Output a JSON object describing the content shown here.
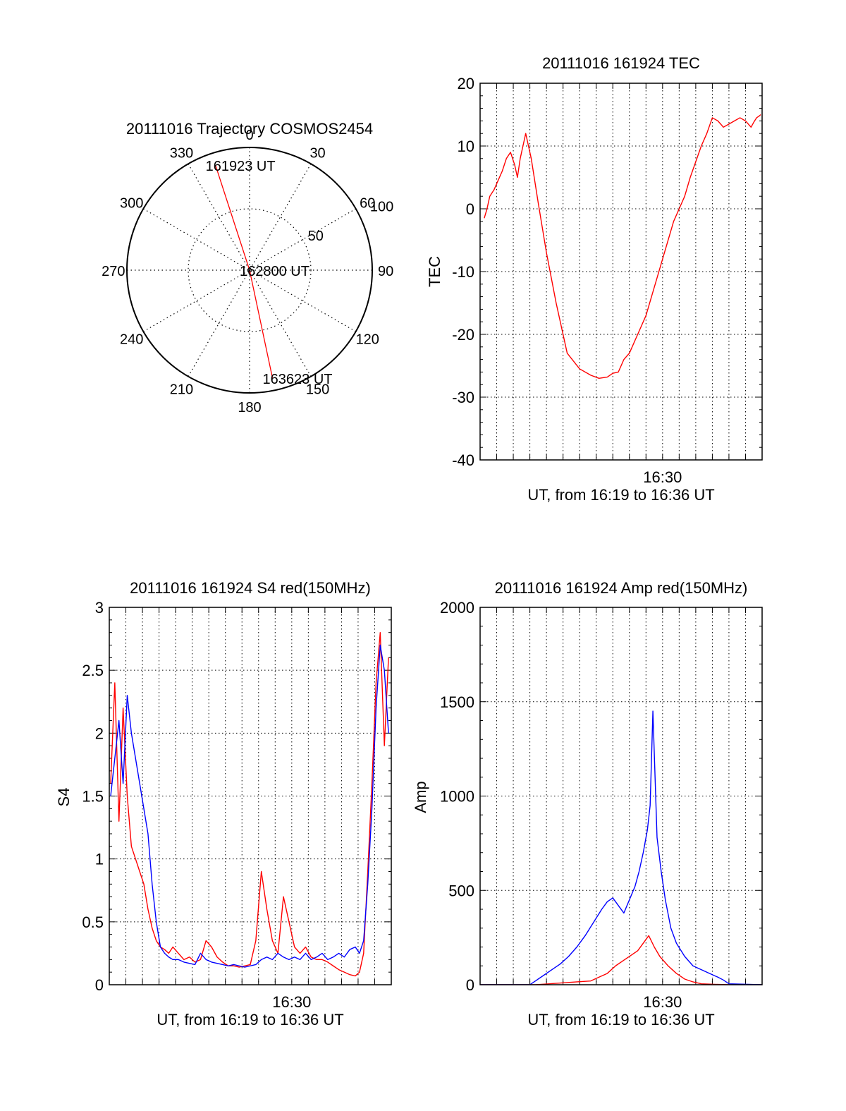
{
  "colors": {
    "primary": "#ff0000",
    "secondary": "#0000ff",
    "axis": "#000000",
    "grid": "#000000"
  },
  "chart_data": [
    {
      "type": "polar",
      "title": "20111016 Trajectory COSMOS2454",
      "angle_ticks": [
        "0",
        "30",
        "60",
        "90",
        "120",
        "150",
        "180",
        "210",
        "240",
        "270",
        "300",
        "330"
      ],
      "angle_tick_values": [
        0,
        30,
        60,
        90,
        120,
        150,
        180,
        210,
        240,
        270,
        300,
        330
      ],
      "radial_ticks": [
        "50",
        "100"
      ],
      "radial_tick_values": [
        50,
        100
      ],
      "rlim": [
        0,
        100
      ],
      "zero_direction": "top",
      "rotation": "clockwise",
      "grid": true,
      "series": [
        {
          "points": [
            {
              "r": 90,
              "theta": 342
            },
            {
              "r": 0,
              "theta": 0
            },
            {
              "r": 90,
              "theta": 168
            }
          ],
          "color": "#ff0000"
        }
      ],
      "annotations": [
        {
          "text": "161923 UT",
          "r": 90,
          "theta": 342
        },
        {
          "text": "162800 UT",
          "r": 0,
          "theta": 0
        },
        {
          "text": "163623 UT",
          "r": 90,
          "theta": 168
        }
      ]
    },
    {
      "type": "line",
      "title": "20111016 161924 TEC",
      "xlabel": "UT, from 16:19 to 16:36 UT",
      "ylabel": "TEC",
      "xlim": [
        0,
        1020
      ],
      "ylim": [
        -40,
        20
      ],
      "yticks": [
        -40,
        -30,
        -20,
        -10,
        0,
        10,
        20
      ],
      "xticks": [
        {
          "label": "16:30",
          "value": 660
        }
      ],
      "grid": true,
      "series": [
        {
          "color": "#ff0000",
          "x": [
            15,
            25,
            35,
            50,
            65,
            80,
            95,
            110,
            125,
            135,
            145,
            155,
            165,
            170,
            185,
            210,
            240,
            275,
            315,
            360,
            400,
            430,
            460,
            480,
            500,
            520,
            540,
            560,
            580,
            600,
            620,
            640,
            660,
            680,
            700,
            720,
            740,
            760,
            780,
            800,
            820,
            840,
            860,
            880,
            900,
            920,
            940,
            960,
            980,
            990,
            1000,
            1010,
            1015
          ],
          "y": [
            -1.5,
            0,
            2,
            3,
            4.5,
            6,
            8,
            9,
            7,
            5,
            8,
            10,
            12,
            11,
            8,
            1,
            -7,
            -15,
            -23,
            -25.5,
            -26.5,
            -27,
            -26.8,
            -26.2,
            -26,
            -24,
            -23,
            -21,
            -19,
            -17,
            -14,
            -11,
            -8,
            -5,
            -2,
            0,
            2,
            5,
            7.5,
            10,
            12,
            14.5,
            14,
            13,
            13.5,
            14,
            14.5,
            14,
            13,
            13.8,
            14.5,
            14.8,
            15
          ]
        }
      ]
    },
    {
      "type": "line",
      "title": "20111016 161924 S4 red(150MHz)",
      "xlabel": "UT, from 16:19 to 16:36 UT",
      "ylabel": "S4",
      "xlim": [
        0,
        1020
      ],
      "ylim": [
        0,
        3
      ],
      "yticks": [
        0,
        0.5,
        1,
        1.5,
        2,
        2.5,
        3
      ],
      "ytick_labels": [
        "0",
        "0.5",
        "1",
        "1.5",
        "2",
        "2.5",
        "3"
      ],
      "xticks": [
        {
          "label": "16:30",
          "value": 660
        }
      ],
      "grid": true,
      "series": [
        {
          "color": "#ff0000",
          "x": [
            5,
            20,
            35,
            50,
            65,
            80,
            95,
            110,
            125,
            140,
            155,
            170,
            185,
            200,
            215,
            230,
            250,
            270,
            290,
            310,
            330,
            350,
            370,
            390,
            410,
            430,
            450,
            470,
            490,
            510,
            530,
            550,
            570,
            590,
            610,
            630,
            650,
            670,
            690,
            710,
            730,
            750,
            770,
            790,
            810,
            830,
            850,
            870,
            890,
            905,
            920,
            935,
            950,
            965,
            980,
            995,
            1010
          ],
          "y": [
            1.6,
            2.4,
            1.3,
            2.2,
            1.5,
            1.1,
            1.0,
            0.9,
            0.8,
            0.6,
            0.45,
            0.35,
            0.3,
            0.28,
            0.25,
            0.3,
            0.25,
            0.2,
            0.22,
            0.18,
            0.2,
            0.35,
            0.3,
            0.22,
            0.18,
            0.15,
            0.15,
            0.14,
            0.15,
            0.16,
            0.35,
            0.9,
            0.6,
            0.35,
            0.25,
            0.7,
            0.5,
            0.3,
            0.25,
            0.3,
            0.22,
            0.2,
            0.2,
            0.18,
            0.15,
            0.12,
            0.1,
            0.08,
            0.07,
            0.1,
            0.25,
            0.9,
            1.6,
            2.4,
            2.8,
            1.9,
            2.6
          ]
        },
        {
          "color": "#0000ff",
          "x": [
            5,
            20,
            35,
            50,
            65,
            80,
            95,
            110,
            125,
            140,
            155,
            170,
            185,
            200,
            215,
            230,
            250,
            270,
            290,
            310,
            330,
            350,
            370,
            390,
            410,
            430,
            450,
            470,
            490,
            510,
            530,
            550,
            570,
            590,
            610,
            630,
            650,
            670,
            690,
            710,
            730,
            750,
            770,
            790,
            810,
            830,
            850,
            870,
            890,
            905,
            920,
            935,
            950,
            965,
            980,
            995,
            1010
          ],
          "y": [
            1.5,
            1.8,
            2.1,
            1.6,
            2.3,
            2.0,
            1.8,
            1.6,
            1.4,
            1.2,
            0.8,
            0.5,
            0.3,
            0.25,
            0.22,
            0.2,
            0.2,
            0.18,
            0.17,
            0.16,
            0.25,
            0.2,
            0.18,
            0.17,
            0.16,
            0.15,
            0.16,
            0.15,
            0.14,
            0.15,
            0.16,
            0.2,
            0.22,
            0.2,
            0.25,
            0.22,
            0.2,
            0.22,
            0.2,
            0.25,
            0.2,
            0.22,
            0.25,
            0.2,
            0.22,
            0.25,
            0.22,
            0.28,
            0.3,
            0.25,
            0.35,
            0.8,
            1.4,
            2.2,
            2.7,
            2.5,
            2.0
          ]
        }
      ]
    },
    {
      "type": "line",
      "title": "20111016 161924 Amp red(150MHz)",
      "xlabel": "UT, from 16:19 to 16:36 UT",
      "ylabel": "Amp",
      "xlim": [
        0,
        1020
      ],
      "ylim": [
        0,
        2000
      ],
      "yticks": [
        0,
        500,
        1000,
        1500,
        2000
      ],
      "xticks": [
        {
          "label": "16:30",
          "value": 660
        }
      ],
      "grid": true,
      "series": [
        {
          "color": "#ff0000",
          "x": [
            0,
            100,
            200,
            250,
            300,
            350,
            400,
            430,
            460,
            490,
            520,
            550,
            570,
            590,
            610,
            630,
            650,
            680,
            710,
            740,
            770,
            800,
            850,
            900,
            1020
          ],
          "y": [
            0,
            0,
            0,
            5,
            10,
            15,
            20,
            40,
            60,
            100,
            130,
            160,
            180,
            220,
            260,
            200,
            150,
            100,
            60,
            30,
            15,
            5,
            2,
            0,
            0
          ]
        },
        {
          "color": "#0000ff",
          "x": [
            0,
            100,
            180,
            200,
            230,
            260,
            290,
            320,
            350,
            380,
            410,
            440,
            460,
            480,
            500,
            520,
            540,
            560,
            575,
            590,
            605,
            615,
            625,
            640,
            655,
            670,
            690,
            710,
            740,
            770,
            800,
            830,
            860,
            880,
            900,
            1020
          ],
          "y": [
            0,
            0,
            0,
            20,
            50,
            80,
            110,
            150,
            200,
            260,
            330,
            400,
            440,
            460,
            420,
            380,
            450,
            520,
            600,
            700,
            820,
            950,
            1450,
            780,
            600,
            450,
            300,
            220,
            150,
            100,
            80,
            60,
            40,
            25,
            5,
            0
          ]
        }
      ]
    }
  ]
}
